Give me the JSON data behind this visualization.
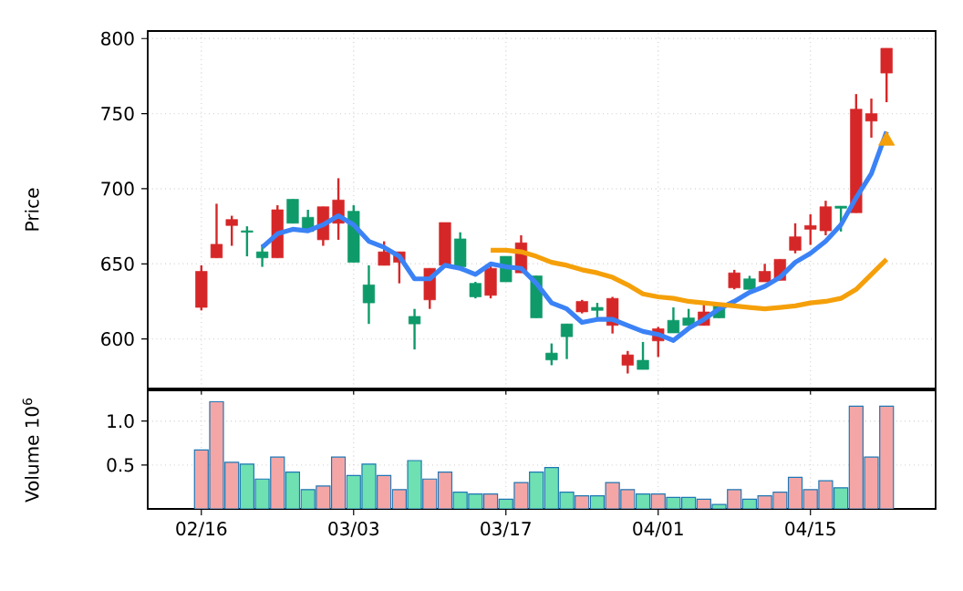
{
  "chart_data": [
    {
      "type": "candlestick",
      "ylabel": "Price",
      "ohlc": [
        [
          621,
          649,
          619,
          645
        ],
        [
          654,
          690,
          654,
          663
        ],
        [
          675.5,
          682,
          662,
          679.5
        ],
        [
          672,
          675,
          655,
          671
        ],
        [
          658,
          663,
          648,
          654
        ],
        [
          654,
          689,
          654,
          686
        ],
        [
          693,
          693,
          677,
          677
        ],
        [
          681,
          686,
          671.5,
          671.5
        ],
        [
          666,
          688,
          662,
          688
        ],
        [
          677,
          707,
          666,
          692.5
        ],
        [
          685,
          689,
          651,
          651
        ],
        [
          636,
          649,
          610,
          624
        ],
        [
          649,
          665,
          649,
          658
        ],
        [
          651,
          658,
          637,
          658
        ],
        [
          615,
          620,
          593,
          610
        ],
        [
          626,
          647,
          620,
          647
        ],
        [
          649,
          677.5,
          649,
          677.5
        ],
        [
          666.6,
          671,
          647,
          648
        ],
        [
          637,
          638,
          627,
          628
        ],
        [
          629,
          649,
          627,
          647
        ],
        [
          655,
          655,
          638,
          638
        ],
        [
          644,
          669,
          644,
          664
        ],
        [
          642,
          642,
          614,
          614
        ],
        [
          590.6,
          597,
          582.5,
          586
        ],
        [
          610,
          610,
          586.6,
          601.5
        ],
        [
          618,
          626,
          617,
          625
        ],
        [
          621,
          624,
          614,
          619
        ],
        [
          609,
          628,
          603.6,
          627
        ],
        [
          582.5,
          592,
          577,
          589.4
        ],
        [
          585.8,
          598,
          579.7,
          579.7
        ],
        [
          598.7,
          608,
          588,
          606.8
        ],
        [
          612.4,
          621,
          604,
          604
        ],
        [
          614,
          620,
          609,
          609
        ],
        [
          609,
          625,
          609,
          618
        ],
        [
          623,
          623,
          614,
          614
        ],
        [
          634,
          646,
          633,
          644
        ],
        [
          640,
          642,
          633,
          633
        ],
        [
          638,
          650,
          638,
          645
        ],
        [
          639,
          653,
          639,
          653
        ],
        [
          659,
          677,
          657,
          668
        ],
        [
          673,
          683,
          662.6,
          675.5
        ],
        [
          672,
          692,
          669,
          688
        ],
        [
          688.4,
          688.4,
          671.5,
          687
        ],
        [
          684,
          763,
          684,
          753
        ],
        [
          745,
          760,
          734,
          750
        ],
        [
          777,
          793.5,
          757.6,
          793.5
        ]
      ],
      "colors": [
        "#d62728",
        "#d62728",
        "#d62728",
        "#0f9a6a",
        "#0f9a6a",
        "#d62728",
        "#0f9a6a",
        "#0f9a6a",
        "#d62728",
        "#d62728",
        "#0f9a6a",
        "#0f9a6a",
        "#d62728",
        "#d62728",
        "#0f9a6a",
        "#d62728",
        "#d62728",
        "#0f9a6a",
        "#0f9a6a",
        "#d62728",
        "#0f9a6a",
        "#d62728",
        "#0f9a6a",
        "#0f9a6a",
        "#0f9a6a",
        "#d62728",
        "#0f9a6a",
        "#d62728",
        "#d62728",
        "#0f9a6a",
        "#d62728",
        "#0f9a6a",
        "#0f9a6a",
        "#d62728",
        "#0f9a6a",
        "#d62728",
        "#0f9a6a",
        "#d62728",
        "#d62728",
        "#d62728",
        "#d62728",
        "#d62728",
        "#0f9a6a",
        "#d62728",
        "#d62728",
        "#d62728"
      ],
      "series": [
        {
          "type": "line",
          "color": "#3b82f6",
          "values": [
            null,
            null,
            null,
            null,
            661,
            670,
            673,
            672,
            676,
            682,
            676,
            665,
            661,
            655,
            640,
            640,
            649,
            647,
            643,
            650,
            648,
            647,
            637,
            624,
            620,
            611,
            613,
            613,
            609,
            605,
            603,
            599,
            607,
            613,
            620,
            625,
            631,
            635,
            641,
            651,
            657,
            665,
            676,
            694,
            710,
            738
          ]
        },
        {
          "type": "line",
          "color": "#f5a00a",
          "values": [
            null,
            null,
            null,
            null,
            null,
            null,
            null,
            null,
            null,
            null,
            null,
            null,
            null,
            null,
            null,
            null,
            null,
            null,
            null,
            659,
            659,
            658,
            655,
            651,
            649,
            646,
            644,
            641,
            636,
            630,
            628,
            627,
            625,
            624,
            623,
            622,
            621,
            620,
            621,
            622,
            624,
            625,
            627,
            633,
            643,
            653
          ]
        },
        {
          "type": "scatter",
          "color": "#f5a00a",
          "marker": "triangle",
          "values": [
            null,
            null,
            null,
            null,
            null,
            null,
            null,
            null,
            null,
            null,
            null,
            null,
            null,
            null,
            null,
            null,
            null,
            null,
            null,
            null,
            null,
            null,
            null,
            null,
            null,
            null,
            null,
            null,
            null,
            null,
            null,
            null,
            null,
            null,
            null,
            null,
            null,
            null,
            null,
            null,
            null,
            null,
            null,
            null,
            null,
            732
          ]
        }
      ],
      "ylim": [
        567,
        805
      ],
      "yticks": [
        600,
        650,
        700,
        750,
        800
      ],
      "grid": true,
      "tick_labels": "y"
    },
    {
      "type": "bar",
      "ylabel": "Volume  10$^{6}$",
      "categories": [
        "02/16",
        null,
        null,
        null,
        null,
        null,
        null,
        null,
        null,
        null,
        "03/03",
        null,
        null,
        null,
        null,
        null,
        null,
        null,
        null,
        null,
        "03/17",
        null,
        null,
        null,
        null,
        null,
        null,
        null,
        null,
        null,
        "04/01",
        null,
        null,
        null,
        null,
        null,
        null,
        null,
        null,
        null,
        "04/15",
        null,
        null,
        null,
        null,
        null
      ],
      "values": [
        0.67,
        1.22,
        0.53,
        0.51,
        0.34,
        0.59,
        0.42,
        0.22,
        0.26,
        0.59,
        0.38,
        0.51,
        0.38,
        0.22,
        0.55,
        0.34,
        0.42,
        0.19,
        0.17,
        0.17,
        0.11,
        0.3,
        0.42,
        0.47,
        0.19,
        0.15,
        0.15,
        0.3,
        0.22,
        0.17,
        0.17,
        0.13,
        0.13,
        0.11,
        0.05,
        0.22,
        0.11,
        0.15,
        0.19,
        0.36,
        0.22,
        0.32,
        0.24,
        1.17,
        0.59,
        1.17
      ],
      "colors": [
        "#f4a6a6",
        "#f4a6a6",
        "#f4a6a6",
        "#6ee0b2",
        "#6ee0b2",
        "#f4a6a6",
        "#6ee0b2",
        "#6ee0b2",
        "#f4a6a6",
        "#f4a6a6",
        "#6ee0b2",
        "#6ee0b2",
        "#f4a6a6",
        "#f4a6a6",
        "#6ee0b2",
        "#f4a6a6",
        "#f4a6a6",
        "#6ee0b2",
        "#6ee0b2",
        "#f4a6a6",
        "#6ee0b2",
        "#f4a6a6",
        "#6ee0b2",
        "#6ee0b2",
        "#6ee0b2",
        "#f4a6a6",
        "#6ee0b2",
        "#f4a6a6",
        "#f4a6a6",
        "#6ee0b2",
        "#f4a6a6",
        "#6ee0b2",
        "#6ee0b2",
        "#f4a6a6",
        "#6ee0b2",
        "#f4a6a6",
        "#6ee0b2",
        "#f4a6a6",
        "#f4a6a6",
        "#f4a6a6",
        "#f4a6a6",
        "#f4a6a6",
        "#6ee0b2",
        "#f4a6a6",
        "#f4a6a6",
        "#f4a6a6"
      ],
      "ylim": [
        0,
        1.35
      ],
      "yticks": [
        {
          "value": 0.5,
          "label": "0.5"
        },
        {
          "value": 1,
          "label": "1.0"
        }
      ],
      "grid": true
    }
  ]
}
